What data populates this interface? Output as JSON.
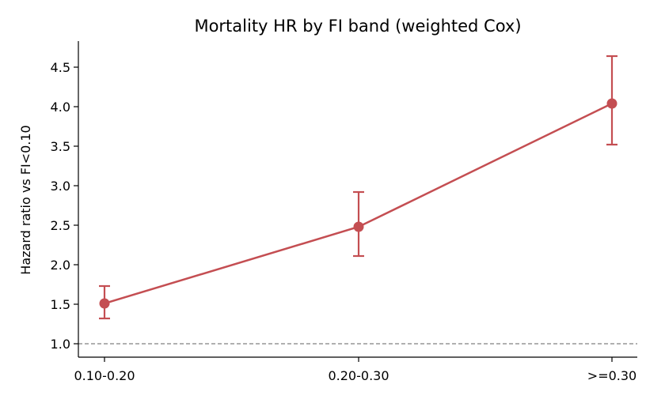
{
  "chart_data": {
    "type": "line",
    "title": "Mortality HR by FI band (weighted Cox)",
    "xlabel": "",
    "ylabel": "Hazard ratio vs FI<0.10",
    "categories": [
      "0.10-0.20",
      "0.20-0.30",
      ">=0.30"
    ],
    "series": [
      {
        "values": [
          1.51,
          2.48,
          4.04
        ],
        "lower": [
          1.32,
          2.11,
          3.52
        ],
        "upper": [
          1.73,
          2.92,
          4.64
        ],
        "color": "#c44e52"
      }
    ],
    "reference_line": {
      "y": 1.0,
      "style": "dashed",
      "color": "#808080"
    },
    "ylim": [
      0.83,
      4.83
    ],
    "yticks": [
      "1.0",
      "1.5",
      "2.0",
      "2.5",
      "3.0",
      "3.5",
      "4.0",
      "4.5"
    ],
    "grid": false
  }
}
